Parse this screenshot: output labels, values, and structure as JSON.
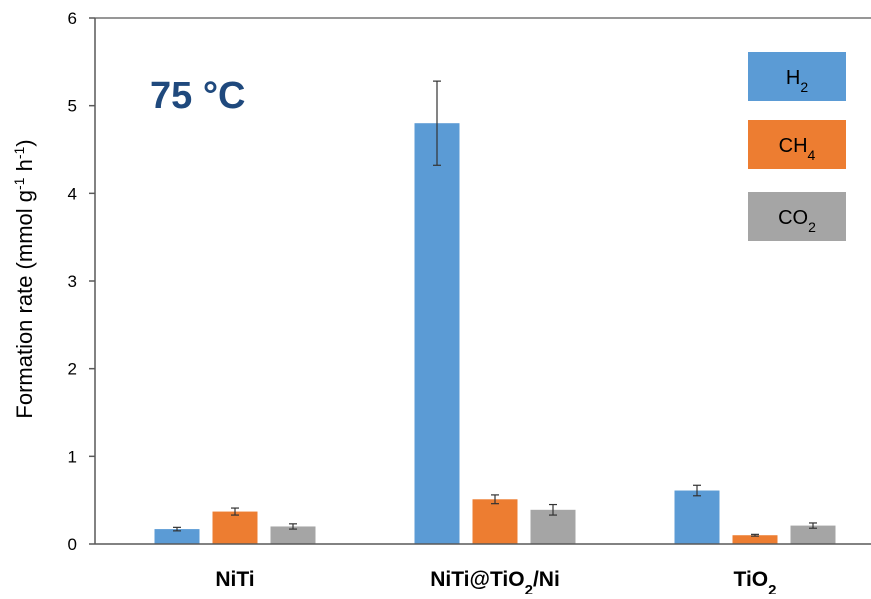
{
  "chart_data": {
    "type": "bar",
    "annotation": "75 °C",
    "ylabel": {
      "main": "Formation rate (mmol g",
      "sup1": "-1",
      "mid": " h",
      "sup2": "-1",
      "end": ")"
    },
    "xlabel": "",
    "ylim": [
      0,
      6
    ],
    "yticks": [
      0,
      1,
      2,
      3,
      4,
      5,
      6
    ],
    "categories": [
      {
        "parts": [
          {
            "t": "NiTi",
            "sub": false
          }
        ]
      },
      {
        "parts": [
          {
            "t": "NiTi@TiO",
            "sub": false
          },
          {
            "t": "2",
            "sub": true
          },
          {
            "t": "/Ni",
            "sub": false
          }
        ]
      },
      {
        "parts": [
          {
            "t": "TiO",
            "sub": false
          },
          {
            "t": "2",
            "sub": true
          }
        ]
      }
    ],
    "series": [
      {
        "name": "H2",
        "label": {
          "main": "H",
          "sub": "2"
        },
        "color": "#5b9bd5",
        "values": [
          0.17,
          4.8,
          0.61
        ],
        "errors": [
          0.02,
          0.48,
          0.06
        ]
      },
      {
        "name": "CH4",
        "label": {
          "main": "CH",
          "sub": "4"
        },
        "color": "#ed7d31",
        "values": [
          0.37,
          0.51,
          0.1
        ],
        "errors": [
          0.04,
          0.05,
          0.01
        ]
      },
      {
        "name": "CO2",
        "label": {
          "main": "CO",
          "sub": "2"
        },
        "color": "#a5a5a5",
        "values": [
          0.2,
          0.39,
          0.21
        ],
        "errors": [
          0.03,
          0.06,
          0.03
        ]
      }
    ],
    "legend_position": "top-right",
    "grid": false
  }
}
